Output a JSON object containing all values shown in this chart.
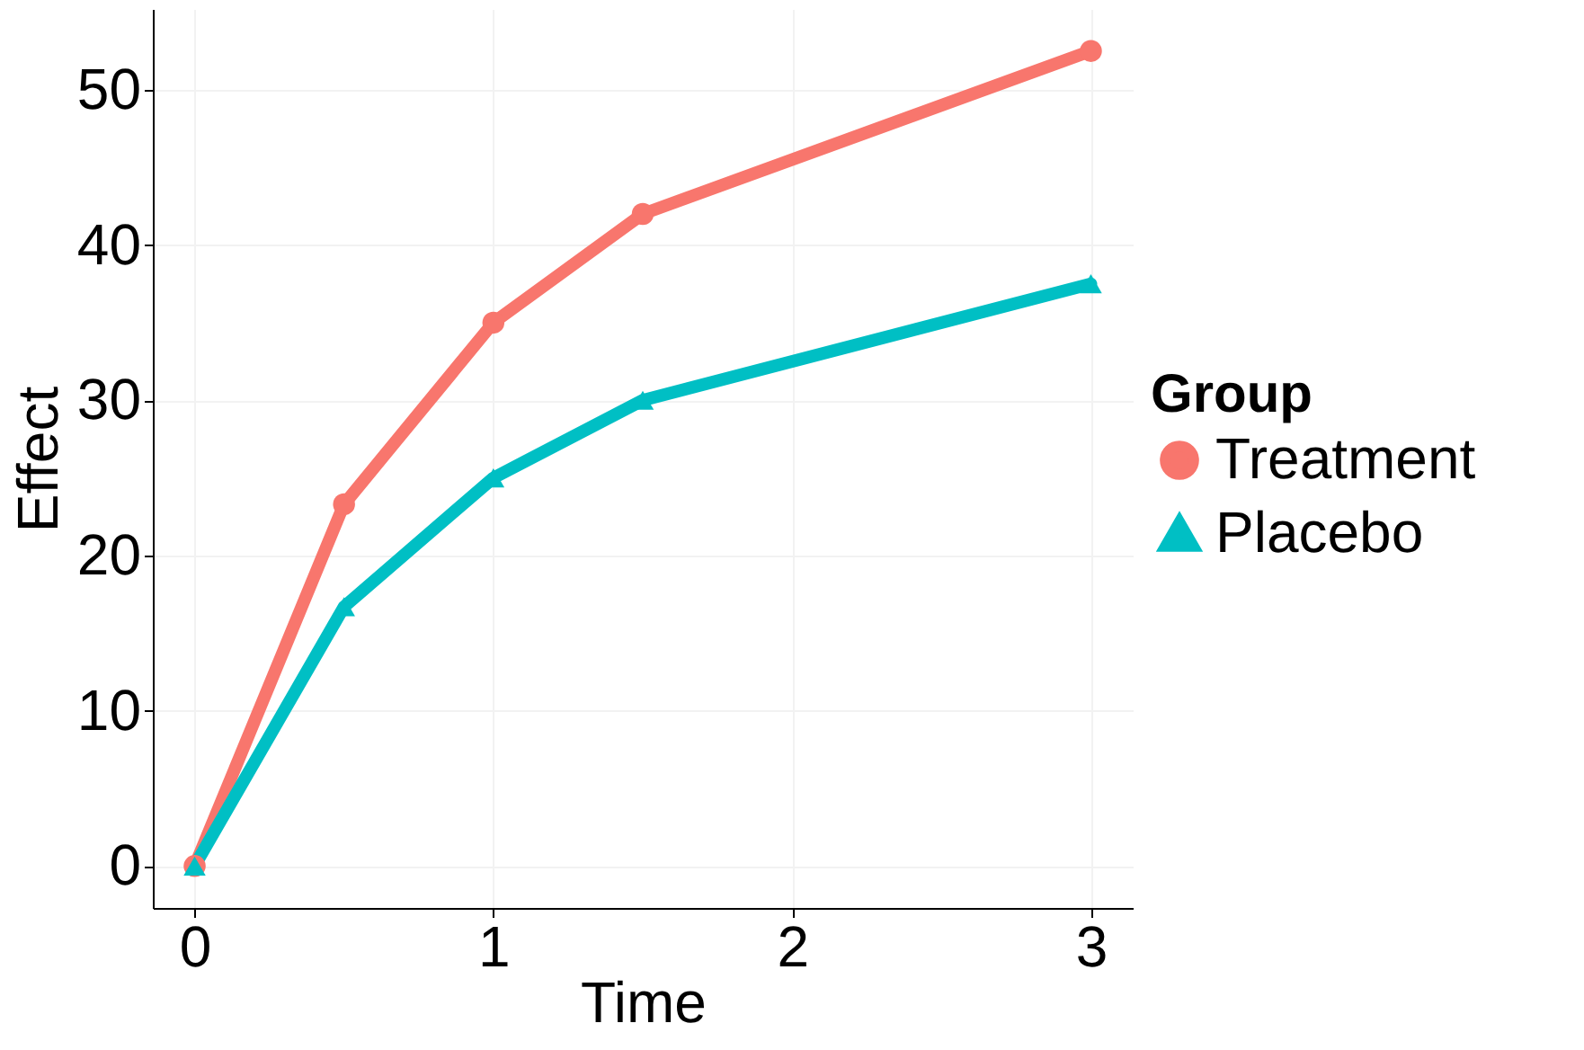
{
  "chart_data": {
    "type": "line",
    "xlabel": "Time",
    "ylabel": "Effect",
    "legend_title": "Group",
    "x": [
      0,
      0.5,
      1,
      1.5,
      3
    ],
    "series": [
      {
        "name": "Treatment",
        "color": "#f8766d",
        "marker": "circle",
        "values": [
          0,
          23.3,
          35,
          42,
          52.5
        ]
      },
      {
        "name": "Placebo",
        "color": "#00bfc4",
        "marker": "triangle",
        "values": [
          0,
          16.7,
          25,
          30,
          37.5
        ]
      }
    ],
    "xlim": [
      -0.14,
      3.14
    ],
    "xticks": [
      0,
      1,
      2,
      3
    ],
    "ylim": [
      -2.7,
      55.2
    ],
    "yticks": [
      0,
      10,
      20,
      30,
      40,
      50
    ],
    "grid": true,
    "legend": "right",
    "line_style": "solid"
  }
}
